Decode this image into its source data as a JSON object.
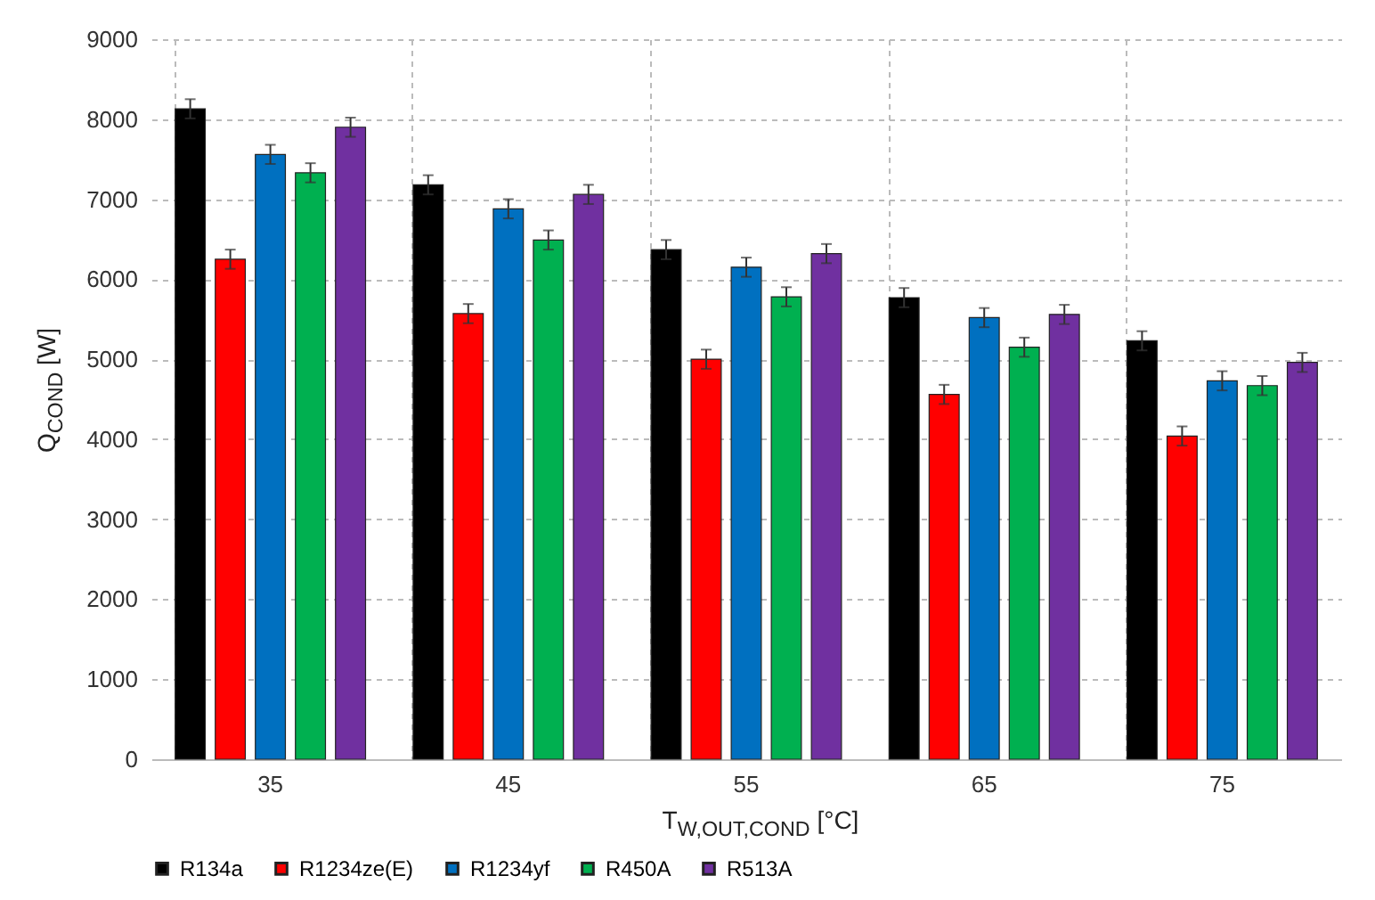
{
  "chart_data": {
    "type": "bar",
    "xlabel": "T$_{W,OUT,COND}$ [°C]",
    "ylabel": "Q$_{COND}$ [W]",
    "categories": [
      "35",
      "45",
      "55",
      "65",
      "75"
    ],
    "ylim": [
      0,
      9000
    ],
    "yticks": [
      0,
      1000,
      2000,
      3000,
      4000,
      5000,
      6000,
      7000,
      8000,
      9000
    ],
    "grid": true,
    "legend": "bottom",
    "series": [
      {
        "name": "R134a",
        "color": "#000000",
        "values": [
          8130,
          7180,
          6370,
          5770,
          5230
        ],
        "errors": [
          120,
          120,
          120,
          120,
          120
        ]
      },
      {
        "name": "R1234ze(E)",
        "color": "#ff0000",
        "values": [
          6250,
          5570,
          5000,
          4560,
          4040
        ],
        "errors": [
          120,
          120,
          120,
          120,
          120
        ]
      },
      {
        "name": "R1234yf",
        "color": "#0070c0",
        "values": [
          7560,
          6880,
          6150,
          5520,
          4730
        ],
        "errors": [
          120,
          120,
          120,
          120,
          120
        ]
      },
      {
        "name": "R450A",
        "color": "#00b050",
        "values": [
          7330,
          6490,
          5780,
          5150,
          4670
        ],
        "errors": [
          120,
          120,
          120,
          120,
          120
        ]
      },
      {
        "name": "R513A",
        "color": "#7030a0",
        "values": [
          7900,
          7060,
          6320,
          5560,
          4960
        ],
        "errors": [
          120,
          120,
          120,
          120,
          120
        ]
      }
    ]
  }
}
